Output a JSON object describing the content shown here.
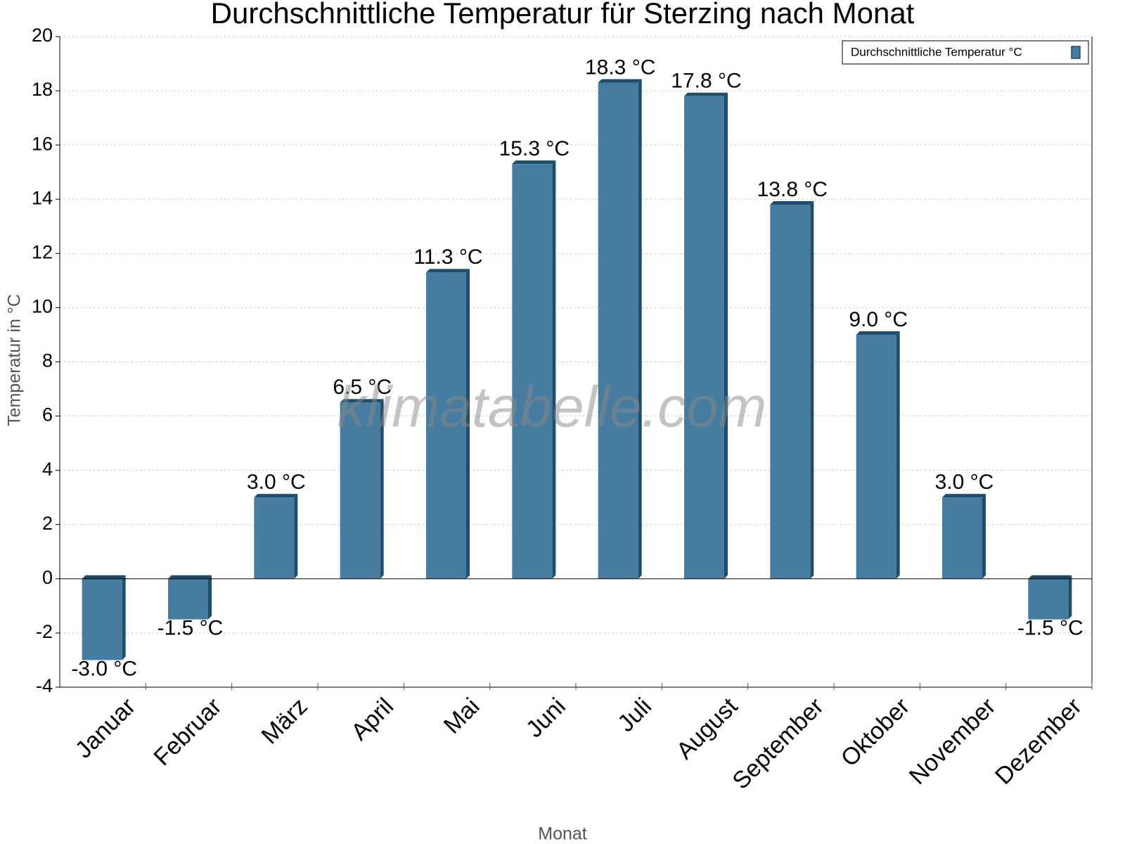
{
  "chart_data": {
    "type": "bar",
    "title": "Durchschnittliche Temperatur für Sterzing nach Monat",
    "x_label": "Monat",
    "y_label": "Temperatur in °C",
    "watermark": "klimatabelle.com",
    "categories": [
      "Januar",
      "Februar",
      "März",
      "April",
      "Mai",
      "Juni",
      "Juli",
      "August",
      "September",
      "Oktober",
      "November",
      "Dezember"
    ],
    "series": [
      {
        "name": "Durchschnittliche Temperatur °C",
        "color": "#467ca0",
        "values": [
          -3.0,
          -1.5,
          3.0,
          6.5,
          11.3,
          15.3,
          18.3,
          17.8,
          13.8,
          9.0,
          3.0,
          -1.5
        ],
        "value_labels": [
          "-3.0 °C",
          "-1.5 °C",
          "3.0 °C",
          "6.5 °C",
          "11.3 °C",
          "15.3 °C",
          "18.3 °C",
          "17.8 °C",
          "13.8 °C",
          "9.0 °C",
          "3.0 °C",
          "-1.5 °C"
        ]
      }
    ],
    "ylim": [
      -4,
      20
    ],
    "yticks": [
      -4,
      -2,
      0,
      2,
      4,
      6,
      8,
      10,
      12,
      14,
      16,
      18,
      20
    ],
    "grid": true,
    "legend": "top-right"
  }
}
